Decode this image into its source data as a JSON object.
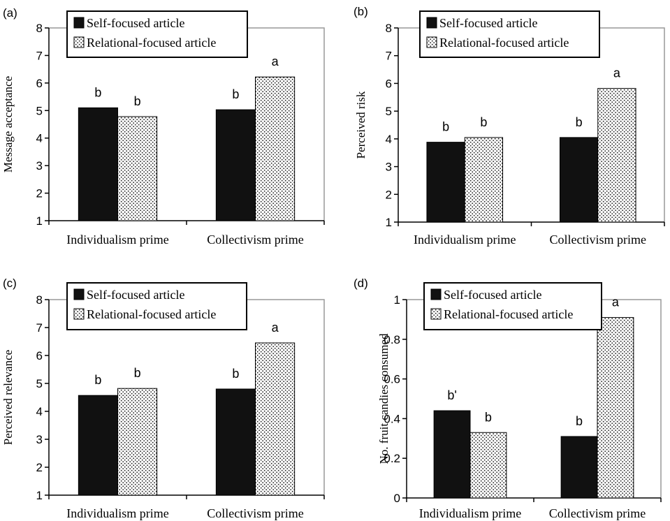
{
  "chart_data": [
    {
      "type": "bar",
      "panel_label": "(a)",
      "ylabel": "Message acceptance",
      "categories": [
        "Individualism prime",
        "Collectivism prime"
      ],
      "ylim": [
        1,
        8
      ],
      "yticks": [
        "1",
        "2",
        "3",
        "4",
        "5",
        "6",
        "7",
        "8"
      ],
      "legend_position": "top-left",
      "series": [
        {
          "name": "Self-focused article",
          "color": "#111111",
          "fill": "solid",
          "values": [
            5.1,
            5.03
          ],
          "labels": [
            "b",
            "b"
          ]
        },
        {
          "name": "Relational-focused article",
          "color": "#ffffff",
          "fill": "dotted",
          "values": [
            4.78,
            6.22
          ],
          "labels": [
            "b",
            "a"
          ]
        }
      ]
    },
    {
      "type": "bar",
      "panel_label": "(b)",
      "ylabel": "Perceived risk",
      "categories": [
        "Individualism prime",
        "Collectivism prime"
      ],
      "ylim": [
        1,
        8
      ],
      "yticks": [
        "1",
        "2",
        "3",
        "4",
        "5",
        "6",
        "7",
        "8"
      ],
      "legend_position": "top-left",
      "series": [
        {
          "name": "Self-focused article",
          "color": "#111111",
          "fill": "solid",
          "values": [
            3.88,
            4.05
          ],
          "labels": [
            "b",
            "b"
          ]
        },
        {
          "name": "Relational-focused article",
          "color": "#ffffff",
          "fill": "dotted",
          "values": [
            4.05,
            5.82
          ],
          "labels": [
            "b",
            "a"
          ]
        }
      ]
    },
    {
      "type": "bar",
      "panel_label": "(c)",
      "ylabel": "Perceived relevance",
      "categories": [
        "Individualism prime",
        "Collectivism prime"
      ],
      "ylim": [
        1,
        8
      ],
      "yticks": [
        "1",
        "2",
        "3",
        "4",
        "5",
        "6",
        "7",
        "8"
      ],
      "legend_position": "top-left",
      "series": [
        {
          "name": "Self-focused article",
          "color": "#111111",
          "fill": "solid",
          "values": [
            4.57,
            4.8
          ],
          "labels": [
            "b",
            "b"
          ]
        },
        {
          "name": "Relational-focused article",
          "color": "#ffffff",
          "fill": "dotted",
          "values": [
            4.82,
            6.45
          ],
          "labels": [
            "b",
            "a"
          ]
        }
      ]
    },
    {
      "type": "bar",
      "panel_label": "(d)",
      "ylabel": "No. fruit candies consumed",
      "categories": [
        "Individualism prime",
        "Collectivism prime"
      ],
      "ylim": [
        0,
        1
      ],
      "yticks": [
        "0",
        "0.2",
        "0.4",
        "0.6",
        "0.8",
        "1"
      ],
      "legend_position": "top-left",
      "series": [
        {
          "name": "Self-focused article",
          "color": "#111111",
          "fill": "solid",
          "values": [
            0.44,
            0.31
          ],
          "labels": [
            "b'",
            "b"
          ]
        },
        {
          "name": "Relational-focused article",
          "color": "#ffffff",
          "fill": "dotted",
          "values": [
            0.33,
            0.91
          ],
          "labels": [
            "b",
            "a"
          ]
        }
      ]
    }
  ]
}
